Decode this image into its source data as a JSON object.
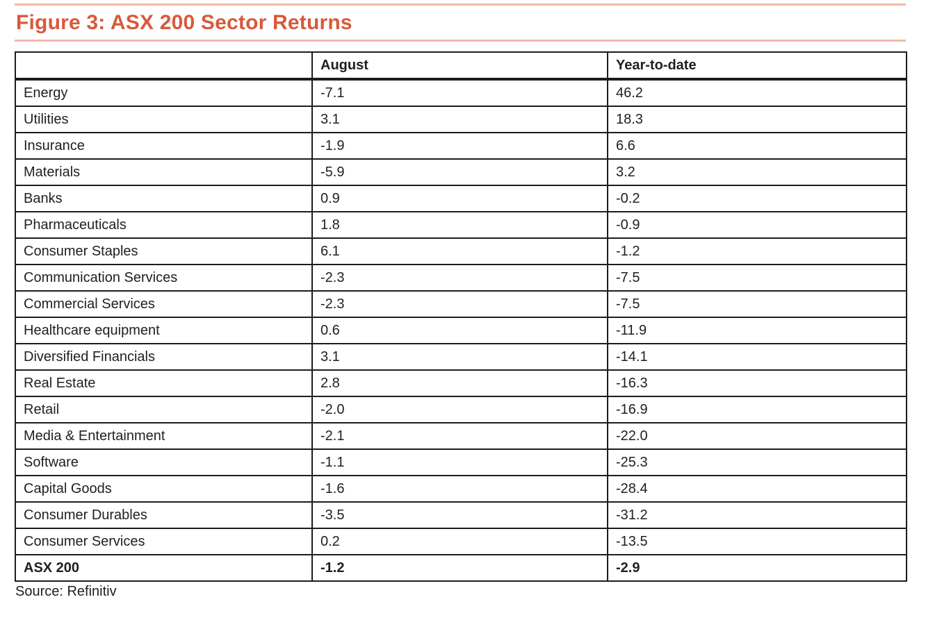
{
  "figure": {
    "title": "Figure 3: ASX 200 Sector Returns",
    "source": "Source: Refinitiv"
  },
  "colors": {
    "accent": "#d8593b",
    "rule": "#f4b8a4",
    "table_border": "#1c1c1c",
    "text": "#1f1f1f"
  },
  "table": {
    "columns": [
      "",
      "August",
      "Year-to-date"
    ],
    "rows": [
      {
        "sector": "Energy",
        "august": "-7.1",
        "ytd": "46.2"
      },
      {
        "sector": "Utilities",
        "august": "3.1",
        "ytd": "18.3"
      },
      {
        "sector": "Insurance",
        "august": "-1.9",
        "ytd": "6.6"
      },
      {
        "sector": "Materials",
        "august": "-5.9",
        "ytd": "3.2"
      },
      {
        "sector": "Banks",
        "august": "0.9",
        "ytd": "-0.2"
      },
      {
        "sector": "Pharmaceuticals",
        "august": "1.8",
        "ytd": "-0.9"
      },
      {
        "sector": "Consumer Staples",
        "august": "6.1",
        "ytd": "-1.2"
      },
      {
        "sector": "Communication Services",
        "august": "-2.3",
        "ytd": "-7.5"
      },
      {
        "sector": "Commercial Services",
        "august": "-2.3",
        "ytd": "-7.5"
      },
      {
        "sector": "Healthcare equipment",
        "august": "0.6",
        "ytd": "-11.9"
      },
      {
        "sector": "Diversified Financials",
        "august": "3.1",
        "ytd": "-14.1"
      },
      {
        "sector": "Real Estate",
        "august": "2.8",
        "ytd": "-16.3"
      },
      {
        "sector": "Retail",
        "august": "-2.0",
        "ytd": "-16.9"
      },
      {
        "sector": "Media & Entertainment",
        "august": "-2.1",
        "ytd": "-22.0"
      },
      {
        "sector": "Software",
        "august": "-1.1",
        "ytd": "-25.3"
      },
      {
        "sector": "Capital Goods",
        "august": "-1.6",
        "ytd": "-28.4"
      },
      {
        "sector": "Consumer Durables",
        "august": "-3.5",
        "ytd": "-31.2"
      },
      {
        "sector": "Consumer Services",
        "august": "0.2",
        "ytd": "-13.5"
      }
    ],
    "total_row": {
      "sector": "ASX 200",
      "august": "-1.2",
      "ytd": "-2.9"
    }
  },
  "chart_data": {
    "type": "table",
    "title": "Figure 3: ASX 200 Sector Returns",
    "columns": [
      "Sector",
      "August",
      "Year-to-date"
    ],
    "categories": [
      "Energy",
      "Utilities",
      "Insurance",
      "Materials",
      "Banks",
      "Pharmaceuticals",
      "Consumer Staples",
      "Communication Services",
      "Commercial Services",
      "Healthcare equipment",
      "Diversified Financials",
      "Real Estate",
      "Retail",
      "Media & Entertainment",
      "Software",
      "Capital Goods",
      "Consumer Durables",
      "Consumer Services",
      "ASX 200"
    ],
    "series": [
      {
        "name": "August",
        "values": [
          -7.1,
          3.1,
          -1.9,
          -5.9,
          0.9,
          1.8,
          6.1,
          -2.3,
          -2.3,
          0.6,
          3.1,
          2.8,
          -2.0,
          -2.1,
          -1.1,
          -1.6,
          -3.5,
          0.2,
          -1.2
        ]
      },
      {
        "name": "Year-to-date",
        "values": [
          46.2,
          18.3,
          6.6,
          3.2,
          -0.2,
          -0.9,
          -1.2,
          -7.5,
          -7.5,
          -11.9,
          -14.1,
          -16.3,
          -16.9,
          -22.0,
          -25.3,
          -28.4,
          -31.2,
          -13.5,
          -2.9
        ]
      }
    ],
    "source": "Source: Refinitiv"
  }
}
